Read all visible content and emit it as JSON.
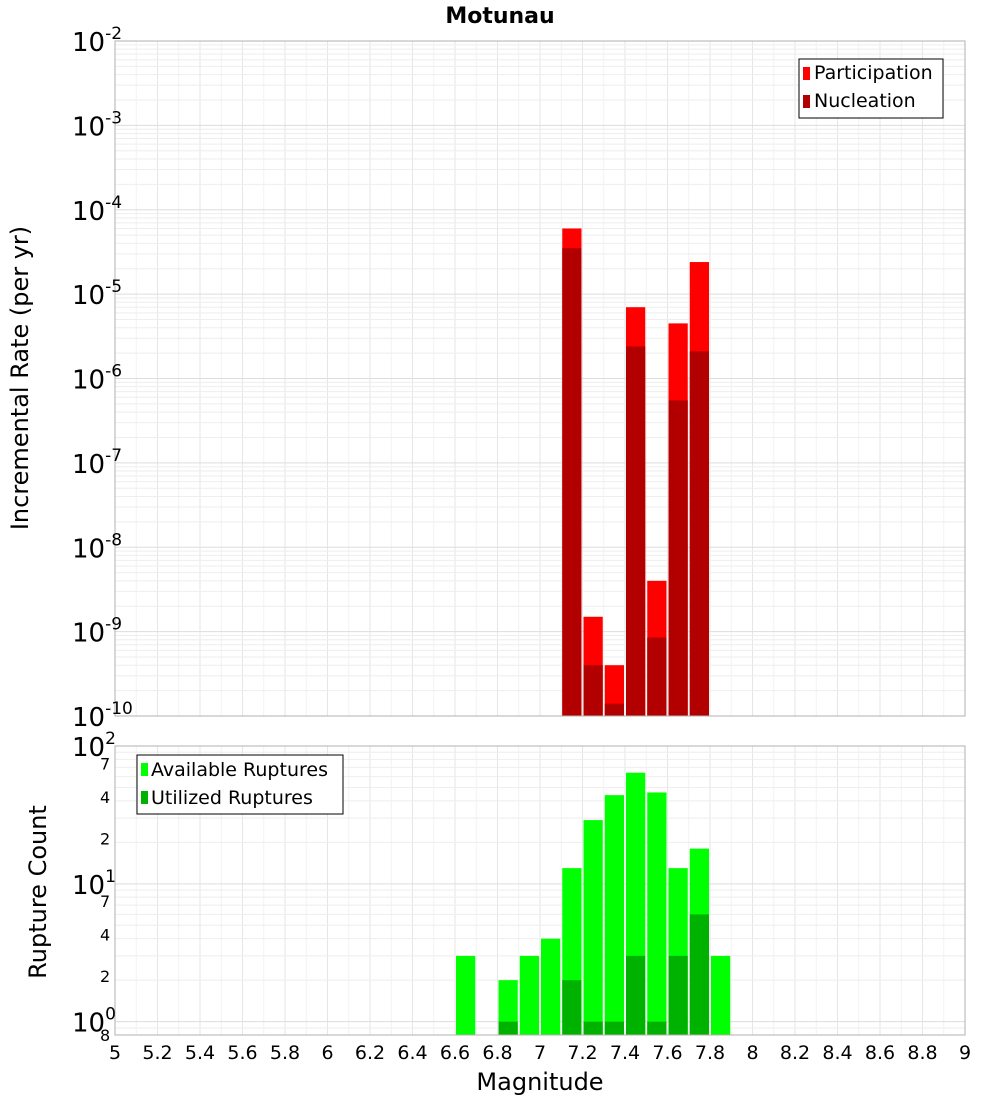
{
  "chart_data": [
    {
      "type": "bar",
      "title": "Motunau",
      "xlabel": "Magnitude",
      "ylabel": "Incremental Rate (per yr)",
      "y_scale": "log",
      "ylim": [
        1e-10,
        0.01
      ],
      "xlim": [
        5,
        9
      ],
      "grid": true,
      "legend": "top-right",
      "y_ticks": [
        {
          "base": "10",
          "exp": "-10",
          "value": 1e-10
        },
        {
          "base": "10",
          "exp": "-9",
          "value": 1e-09
        },
        {
          "base": "10",
          "exp": "-8",
          "value": 1e-08
        },
        {
          "base": "10",
          "exp": "-7",
          "value": 1e-07
        },
        {
          "base": "10",
          "exp": "-6",
          "value": 1e-06
        },
        {
          "base": "10",
          "exp": "-5",
          "value": 1e-05
        },
        {
          "base": "10",
          "exp": "-4",
          "value": 0.0001
        },
        {
          "base": "10",
          "exp": "-3",
          "value": 0.001
        },
        {
          "base": "10",
          "exp": "-2",
          "value": 0.01
        }
      ],
      "series": [
        {
          "name": "Participation",
          "color": "#ff0000",
          "points": [
            {
              "x": 7.15,
              "y": 6e-05
            },
            {
              "x": 7.25,
              "y": 1.5e-09
            },
            {
              "x": 7.35,
              "y": 4e-10
            },
            {
              "x": 7.45,
              "y": 7e-06
            },
            {
              "x": 7.55,
              "y": 4e-09
            },
            {
              "x": 7.65,
              "y": 4.5e-06
            },
            {
              "x": 7.75,
              "y": 2.4e-05
            }
          ]
        },
        {
          "name": "Nucleation",
          "color": "#b20000",
          "points": [
            {
              "x": 7.15,
              "y": 3.5e-05
            },
            {
              "x": 7.25,
              "y": 4e-10
            },
            {
              "x": 7.35,
              "y": 1.4e-10
            },
            {
              "x": 7.45,
              "y": 2.4e-06
            },
            {
              "x": 7.55,
              "y": 8.5e-10
            },
            {
              "x": 7.65,
              "y": 5.5e-07
            },
            {
              "x": 7.75,
              "y": 2.1e-06
            }
          ]
        }
      ]
    },
    {
      "type": "bar",
      "xlabel": "Magnitude",
      "ylabel": "Rupture Count",
      "y_scale": "log",
      "ylim": [
        0.8,
        100
      ],
      "xlim": [
        5,
        9
      ],
      "grid": true,
      "legend": "top-left",
      "x_ticks": [
        "5",
        "5.2",
        "5.4",
        "5.6",
        "5.8",
        "6",
        "6.2",
        "6.4",
        "6.6",
        "6.8",
        "7",
        "7.2",
        "7.4",
        "7.6",
        "7.8",
        "8",
        "8.2",
        "8.4",
        "8.6",
        "8.8",
        "9"
      ],
      "y_major_ticks": [
        {
          "base": "10",
          "exp": "0",
          "value": 1
        },
        {
          "base": "10",
          "exp": "1",
          "value": 10
        },
        {
          "base": "10",
          "exp": "2",
          "value": 100
        }
      ],
      "y_minor_ticks": [
        {
          "label": "8",
          "value": 0.8
        },
        {
          "label": "2",
          "value": 2
        },
        {
          "label": "4",
          "value": 4
        },
        {
          "label": "7",
          "value": 7
        },
        {
          "label": "2",
          "value": 20
        },
        {
          "label": "4",
          "value": 40
        },
        {
          "label": "7",
          "value": 70
        }
      ],
      "series": [
        {
          "name": "Available Ruptures",
          "color": "#00ff00",
          "points": [
            {
              "x": 6.65,
              "y": 3
            },
            {
              "x": 6.85,
              "y": 2
            },
            {
              "x": 6.95,
              "y": 3
            },
            {
              "x": 7.05,
              "y": 4
            },
            {
              "x": 7.15,
              "y": 13
            },
            {
              "x": 7.25,
              "y": 29
            },
            {
              "x": 7.35,
              "y": 44
            },
            {
              "x": 7.45,
              "y": 64
            },
            {
              "x": 7.55,
              "y": 46
            },
            {
              "x": 7.65,
              "y": 13
            },
            {
              "x": 7.75,
              "y": 18
            },
            {
              "x": 7.85,
              "y": 3
            }
          ]
        },
        {
          "name": "Utilized Ruptures",
          "color": "#00b200",
          "points": [
            {
              "x": 6.85,
              "y": 1
            },
            {
              "x": 7.15,
              "y": 2
            },
            {
              "x": 7.25,
              "y": 1
            },
            {
              "x": 7.35,
              "y": 1
            },
            {
              "x": 7.45,
              "y": 3
            },
            {
              "x": 7.55,
              "y": 1
            },
            {
              "x": 7.65,
              "y": 3
            },
            {
              "x": 7.75,
              "y": 6
            }
          ]
        }
      ]
    }
  ]
}
